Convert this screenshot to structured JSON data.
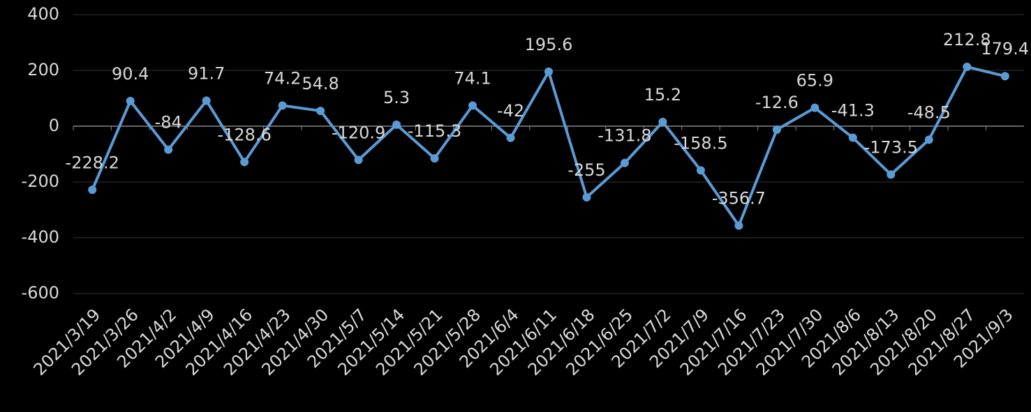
{
  "chart_data": {
    "type": "line",
    "categories": [
      "2021/3/19",
      "2021/3/26",
      "2021/4/2",
      "2021/4/9",
      "2021/4/16",
      "2021/4/23",
      "2021/4/30",
      "2021/5/7",
      "2021/5/14",
      "2021/5/21",
      "2021/5/28",
      "2021/6/4",
      "2021/6/11",
      "2021/6/18",
      "2021/6/25",
      "2021/7/2",
      "2021/7/9",
      "2021/7/16",
      "2021/7/23",
      "2021/7/30",
      "2021/8/6",
      "2021/8/13",
      "2021/8/20",
      "2021/8/27",
      "2021/9/3"
    ],
    "values": [
      -228.2,
      90.4,
      -84,
      91.7,
      -128.6,
      74.2,
      54.8,
      -120.9,
      5.3,
      -115.3,
      74.1,
      -42,
      195.6,
      -255,
      -131.8,
      15.2,
      -158.5,
      -356.7,
      -12.6,
      65.9,
      -41.3,
      -173.5,
      -48.5,
      212.8,
      179.4
    ],
    "color": "#5b9bd5",
    "ylim": [
      -600,
      400
    ],
    "yticks": [
      -600,
      -400,
      -200,
      0,
      200,
      400
    ],
    "grid": true
  }
}
